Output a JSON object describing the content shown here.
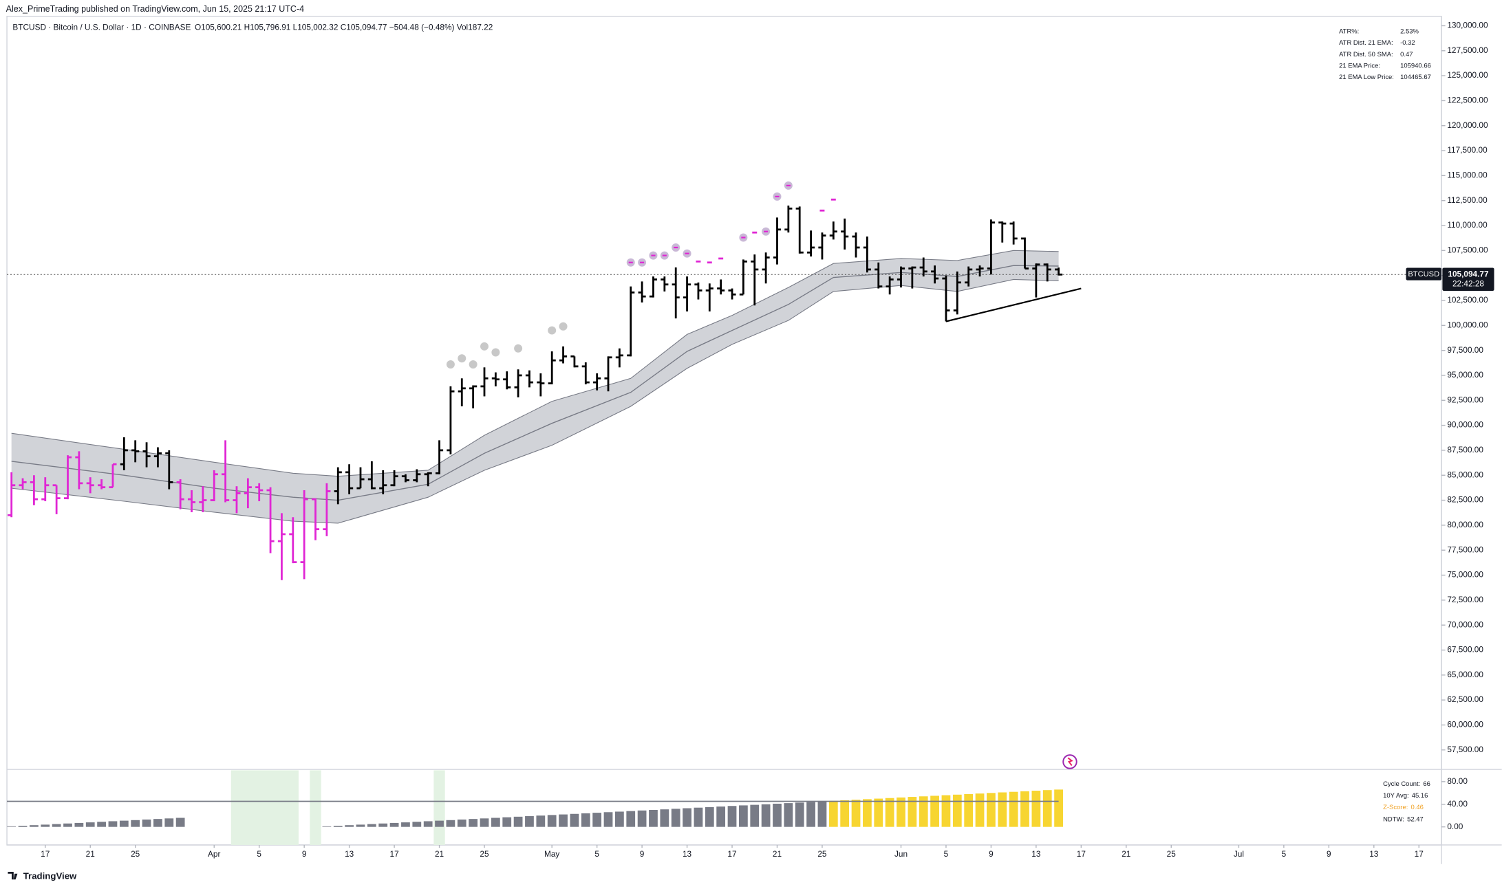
{
  "header": {
    "publisher": "Alex_PrimeTrading published on TradingView.com, Jun 15, 2025 21:17 UTC-4",
    "symbol": "BTCUSD · Bitcoin / U.S. Dollar · 1D · COINBASE",
    "ohlc_text": "O105,600.21 H105,796.91 L105,002.32 C105,094.77 −504.48 (−0.48%) Vol187.22"
  },
  "chart_data": {
    "type": "ohlc",
    "x": [
      "Mar 14",
      "Mar 15",
      "Mar 16",
      "Mar 17",
      "Mar 18",
      "Mar 19",
      "Mar 20",
      "Mar 21",
      "Mar 22",
      "Mar 23",
      "Mar 24",
      "Mar 25",
      "Mar 26",
      "Mar 27",
      "Mar 28",
      "Mar 29",
      "Mar 30",
      "Mar 31",
      "Apr 1",
      "Apr 2",
      "Apr 3",
      "Apr 4",
      "Apr 5",
      "Apr 6",
      "Apr 7",
      "Apr 8",
      "Apr 9",
      "Apr 10",
      "Apr 11",
      "Apr 12",
      "Apr 13",
      "Apr 14",
      "Apr 15",
      "Apr 16",
      "Apr 17",
      "Apr 18",
      "Apr 19",
      "Apr 20",
      "Apr 21",
      "Apr 22",
      "Apr 23",
      "Apr 24",
      "Apr 25",
      "Apr 26",
      "Apr 27",
      "Apr 28",
      "Apr 29",
      "Apr 30",
      "May 1",
      "May 2",
      "May 3",
      "May 4",
      "May 5",
      "May 6",
      "May 7",
      "May 8",
      "May 9",
      "May 10",
      "May 11",
      "May 12",
      "May 13",
      "May 14",
      "May 15",
      "May 16",
      "May 17",
      "May 18",
      "May 19",
      "May 20",
      "May 21",
      "May 22",
      "May 23",
      "May 24",
      "May 25",
      "May 26",
      "May 27",
      "May 28",
      "May 29",
      "May 30",
      "May 31",
      "Jun 1",
      "Jun 2",
      "Jun 3",
      "Jun 4",
      "Jun 5",
      "Jun 6",
      "Jun 7",
      "Jun 8",
      "Jun 9",
      "Jun 10",
      "Jun 11",
      "Jun 12",
      "Jun 13",
      "Jun 14",
      "Jun 15"
    ],
    "ohlc": [
      [
        81000,
        85300,
        80800,
        84000
      ],
      [
        84000,
        84700,
        83600,
        84300
      ],
      [
        84300,
        85000,
        82000,
        82600
      ],
      [
        82600,
        84800,
        82400,
        84000
      ],
      [
        84000,
        84000,
        81100,
        82700
      ],
      [
        82700,
        87000,
        82600,
        86800
      ],
      [
        86800,
        87400,
        83600,
        84200
      ],
      [
        84200,
        84800,
        83200,
        84000
      ],
      [
        84000,
        84600,
        83600,
        83800
      ],
      [
        83800,
        86100,
        83800,
        86100
      ],
      [
        86100,
        88800,
        85500,
        87500
      ],
      [
        87500,
        88500,
        86300,
        87400
      ],
      [
        87400,
        88300,
        85800,
        86900
      ],
      [
        86900,
        87800,
        85800,
        87200
      ],
      [
        87200,
        87500,
        83600,
        84300
      ],
      [
        84300,
        84600,
        81600,
        82600
      ],
      [
        82600,
        83500,
        81300,
        82300
      ],
      [
        82300,
        83900,
        81300,
        82500
      ],
      [
        82500,
        85500,
        82400,
        85100
      ],
      [
        85100,
        88500,
        82300,
        82500
      ],
      [
        82500,
        83900,
        81200,
        83200
      ],
      [
        83200,
        84700,
        81700,
        83800
      ],
      [
        83800,
        84200,
        82400,
        83500
      ],
      [
        83500,
        83800,
        77200,
        78400
      ],
      [
        78400,
        81200,
        74500,
        79100
      ],
      [
        79100,
        80800,
        76200,
        76300
      ],
      [
        76300,
        83500,
        74600,
        82600
      ],
      [
        82600,
        82700,
        78500,
        79600
      ],
      [
        79600,
        84200,
        78900,
        83400
      ],
      [
        83400,
        85800,
        82100,
        85300
      ],
      [
        85300,
        86100,
        83100,
        83700
      ],
      [
        83700,
        85800,
        83700,
        84600
      ],
      [
        84600,
        86400,
        83600,
        83700
      ],
      [
        83700,
        85500,
        83100,
        84000
      ],
      [
        84000,
        85500,
        83900,
        84900
      ],
      [
        84900,
        85100,
        84300,
        84500
      ],
      [
        84500,
        85600,
        84300,
        85100
      ],
      [
        85100,
        85300,
        83900,
        85200
      ],
      [
        85200,
        88500,
        85100,
        87500
      ],
      [
        87500,
        93900,
        87100,
        93400
      ],
      [
        93400,
        94700,
        91900,
        93700
      ],
      [
        93700,
        94000,
        91700,
        93900
      ],
      [
        93900,
        95800,
        92900,
        94700
      ],
      [
        94700,
        95300,
        93900,
        94600
      ],
      [
        94600,
        95400,
        93600,
        93800
      ],
      [
        93800,
        95600,
        92800,
        95000
      ],
      [
        95000,
        95500,
        93800,
        94300
      ],
      [
        94300,
        95200,
        92900,
        94200
      ],
      [
        94200,
        97400,
        94100,
        96500
      ],
      [
        96500,
        97900,
        96200,
        96900
      ],
      [
        96900,
        96900,
        95800,
        95900
      ],
      [
        95900,
        96300,
        94100,
        94300
      ],
      [
        94300,
        95200,
        93500,
        94700
      ],
      [
        94700,
        96900,
        93400,
        96800
      ],
      [
        96800,
        97700,
        95800,
        97000
      ],
      [
        97000,
        103900,
        96900,
        103300
      ],
      [
        103300,
        104400,
        102300,
        102900
      ],
      [
        102900,
        104900,
        102800,
        104600
      ],
      [
        104600,
        104900,
        103400,
        104100
      ],
      [
        104100,
        105800,
        100700,
        102800
      ],
      [
        102800,
        104900,
        101400,
        104100
      ],
      [
        104100,
        104300,
        102600,
        103500
      ],
      [
        103500,
        104200,
        101400,
        103700
      ],
      [
        103700,
        104600,
        103100,
        103500
      ],
      [
        103500,
        103700,
        102600,
        103100
      ],
      [
        103100,
        106600,
        103100,
        106400
      ],
      [
        106400,
        107100,
        102000,
        105600
      ],
      [
        105600,
        107300,
        104200,
        106800
      ],
      [
        106800,
        110800,
        106100,
        109600
      ],
      [
        109600,
        112000,
        109300,
        111700
      ],
      [
        111700,
        111900,
        107200,
        107300
      ],
      [
        107300,
        109500,
        106900,
        107800
      ],
      [
        107800,
        109300,
        106600,
        109000
      ],
      [
        109000,
        110400,
        108600,
        109400
      ],
      [
        109400,
        110700,
        107600,
        108900
      ],
      [
        108900,
        109300,
        106800,
        107800
      ],
      [
        107800,
        108900,
        105300,
        105600
      ],
      [
        105600,
        106300,
        103700,
        103900
      ],
      [
        103900,
        104900,
        103100,
        104600
      ],
      [
        104600,
        105900,
        103800,
        105700
      ],
      [
        105700,
        105900,
        103700,
        105800
      ],
      [
        105800,
        106800,
        104900,
        105400
      ],
      [
        105400,
        106000,
        104200,
        104700
      ],
      [
        104700,
        105000,
        100400,
        101500
      ],
      [
        101500,
        105400,
        101100,
        104300
      ],
      [
        104300,
        105900,
        103900,
        105600
      ],
      [
        105600,
        106000,
        104900,
        105700
      ],
      [
        105700,
        110600,
        105100,
        110300
      ],
      [
        110300,
        110400,
        108300,
        110200
      ],
      [
        110200,
        110400,
        108100,
        108700
      ],
      [
        108700,
        108800,
        105700,
        105700
      ],
      [
        105700,
        106200,
        102800,
        106100
      ],
      [
        106100,
        106200,
        104400,
        105600
      ],
      [
        105600.21,
        105796.91,
        105002.32,
        105094.77
      ]
    ],
    "bar_colors": [
      "#e026d4",
      "#e026d4",
      "#e026d4",
      "#e026d4",
      "#e026d4",
      "#e026d4",
      "#e026d4",
      "#e026d4",
      "#e026d4",
      "#e026d4",
      "#000000",
      "#000000",
      "#000000",
      "#000000",
      "#000000",
      "#e026d4",
      "#e026d4",
      "#e026d4",
      "#e026d4",
      "#e026d4",
      "#e026d4",
      "#e026d4",
      "#e026d4",
      "#e026d4",
      "#e026d4",
      "#e026d4",
      "#e026d4",
      "#e026d4",
      "#e026d4",
      "#000000",
      "#000000",
      "#000000",
      "#000000",
      "#000000",
      "#000000",
      "#000000",
      "#000000",
      "#000000",
      "#000000",
      "#000000",
      "#000000",
      "#000000",
      "#000000",
      "#000000",
      "#000000",
      "#000000",
      "#000000",
      "#000000",
      "#000000",
      "#000000",
      "#000000",
      "#000000",
      "#000000",
      "#000000",
      "#000000",
      "#000000",
      "#000000",
      "#000000",
      "#000000",
      "#000000",
      "#000000",
      "#000000",
      "#000000",
      "#000000",
      "#000000",
      "#000000",
      "#000000",
      "#000000",
      "#000000",
      "#000000",
      "#000000",
      "#000000",
      "#000000",
      "#000000",
      "#000000",
      "#000000",
      "#000000",
      "#000000",
      "#000000",
      "#000000",
      "#000000",
      "#000000",
      "#000000",
      "#000000",
      "#000000",
      "#000000",
      "#000000",
      "#000000",
      "#000000",
      "#000000",
      "#000000",
      "#000000",
      "#000000",
      "#000000"
    ],
    "xlim": [
      "Mar 13",
      "Jul 19"
    ],
    "ylim": [
      55650,
      130950
    ],
    "yticks": [
      {
        "value": 130000,
        "label": "130,000.00"
      },
      {
        "value": 127500,
        "label": "127,500.00"
      },
      {
        "value": 125000,
        "label": "125,000.00"
      },
      {
        "value": 122500,
        "label": "122,500.00"
      },
      {
        "value": 120000,
        "label": "120,000.00"
      },
      {
        "value": 117500,
        "label": "117,500.00"
      },
      {
        "value": 115000,
        "label": "115,000.00"
      },
      {
        "value": 112500,
        "label": "112,500.00"
      },
      {
        "value": 110000,
        "label": "110,000.00"
      },
      {
        "value": 107500,
        "label": "107,500.00"
      },
      {
        "value": 105000,
        "label": "105,000.00"
      },
      {
        "value": 102500,
        "label": "102,500.00"
      },
      {
        "value": 100000,
        "label": "100,000.00"
      },
      {
        "value": 97500,
        "label": "97,500.00"
      },
      {
        "value": 95000,
        "label": "95,000.00"
      },
      {
        "value": 92500,
        "label": "92,500.00"
      },
      {
        "value": 90000,
        "label": "90,000.00"
      },
      {
        "value": 87500,
        "label": "87,500.00"
      },
      {
        "value": 85000,
        "label": "85,000.00"
      },
      {
        "value": 82500,
        "label": "82,500.00"
      },
      {
        "value": 80000,
        "label": "80,000.00"
      },
      {
        "value": 77500,
        "label": "77,500.00"
      },
      {
        "value": 75000,
        "label": "75,000.00"
      },
      {
        "value": 72500,
        "label": "72,500.00"
      },
      {
        "value": 70000,
        "label": "70,000.00"
      },
      {
        "value": 67500,
        "label": "67,500.00"
      },
      {
        "value": 65000,
        "label": "65,000.00"
      },
      {
        "value": 62500,
        "label": "62,500.00"
      },
      {
        "value": 60000,
        "label": "60,000.00"
      },
      {
        "value": 57500,
        "label": "57,500.00"
      }
    ],
    "xticks": [
      {
        "value": "Mar 17",
        "label": "17"
      },
      {
        "value": "Mar 21",
        "label": "21"
      },
      {
        "value": "Mar 25",
        "label": "25"
      },
      {
        "value": "Apr 1",
        "label": "Apr"
      },
      {
        "value": "Apr 5",
        "label": "5"
      },
      {
        "value": "Apr 9",
        "label": "9"
      },
      {
        "value": "Apr 13",
        "label": "13"
      },
      {
        "value": "Apr 17",
        "label": "17"
      },
      {
        "value": "Apr 21",
        "label": "21"
      },
      {
        "value": "Apr 25",
        "label": "25"
      },
      {
        "value": "May 1",
        "label": "May"
      },
      {
        "value": "May 5",
        "label": "5"
      },
      {
        "value": "May 9",
        "label": "9"
      },
      {
        "value": "May 13",
        "label": "13"
      },
      {
        "value": "May 17",
        "label": "17"
      },
      {
        "value": "May 21",
        "label": "21"
      },
      {
        "value": "May 25",
        "label": "25"
      },
      {
        "value": "Jun 1",
        "label": "Jun"
      },
      {
        "value": "Jun 5",
        "label": "5"
      },
      {
        "value": "Jun 9",
        "label": "9"
      },
      {
        "value": "Jun 13",
        "label": "13"
      },
      {
        "value": "Jun 17",
        "label": "17"
      },
      {
        "value": "Jun 21",
        "label": "21"
      },
      {
        "value": "Jun 25",
        "label": "25"
      },
      {
        "value": "Jul 1",
        "label": "Jul"
      },
      {
        "value": "Jul 5",
        "label": "5"
      },
      {
        "value": "Jul 9",
        "label": "9"
      },
      {
        "value": "Jul 13",
        "label": "13"
      },
      {
        "value": "Jul 17",
        "label": "17"
      }
    ],
    "band": {
      "x": [
        "Mar 14",
        "Mar 24",
        "Apr 1",
        "Apr 8",
        "Apr 12",
        "Apr 20",
        "Apr 25",
        "May 1",
        "May 8",
        "May 13",
        "May 17",
        "May 22",
        "May 26",
        "Jun 1",
        "Jun 6",
        "Jun 11",
        "Jun 15"
      ],
      "upper": [
        89200,
        87600,
        86300,
        85200,
        84900,
        85500,
        89000,
        92400,
        94700,
        99100,
        101000,
        103800,
        106200,
        106700,
        106500,
        107500,
        107400
      ],
      "mid": [
        86400,
        85000,
        83700,
        82800,
        82500,
        84100,
        87200,
        90200,
        93300,
        97400,
        99500,
        102100,
        104800,
        105300,
        104900,
        106000,
        105940.66
      ],
      "lower": [
        83700,
        82400,
        81300,
        80400,
        80200,
        82800,
        85500,
        88000,
        91900,
        95700,
        98100,
        100500,
        103400,
        104000,
        103400,
        104600,
        104465.67
      ],
      "color": "#b2b5be",
      "line_color": "#787b86"
    },
    "signal_dots": {
      "x": [
        "Apr 22",
        "Apr 23",
        "Apr 24",
        "Apr 25",
        "Apr 26",
        "Apr 28",
        "May 1",
        "May 2"
      ],
      "values": [
        96100,
        96700,
        96100,
        97900,
        97300,
        97700,
        99500,
        99900
      ],
      "color": "#c8c8c8"
    },
    "signal_rings": {
      "x": [
        "May 8",
        "May 9",
        "May 10",
        "May 11",
        "May 12",
        "May 13",
        "May 18",
        "May 20",
        "May 21",
        "May 22"
      ],
      "values": [
        106300,
        106300,
        107000,
        107000,
        107800,
        107200,
        108800,
        109400,
        112900,
        114000
      ],
      "color": "#c9b8d6",
      "inner_color": "#e026d4"
    },
    "signal_dashes": {
      "x": [
        "May 14",
        "May 15",
        "May 16",
        "May 19",
        "May 25",
        "May 26"
      ],
      "values": [
        106400,
        106300,
        106700,
        109300,
        111500,
        112600
      ],
      "color": "#e026d4"
    },
    "trendline": {
      "x": [
        "Jun 5",
        "Jun 17"
      ],
      "values": [
        100400,
        103700
      ]
    },
    "price_tag": {
      "symbol": "BTCUSD",
      "price": "105,094.77",
      "countdown": "22:42:28"
    },
    "stats_table": [
      [
        "ATR%:",
        "2.53%"
      ],
      [
        "ATR Dist. 21 EMA:",
        -0.32
      ],
      [
        "ATR Dist. 50 SMA:",
        0.47
      ],
      [
        "21 EMA Price:",
        105940.66
      ],
      [
        "21 EMA Low Price:",
        104465.67
      ]
    ],
    "cycle": {
      "values": [
        1,
        2,
        3,
        4,
        5,
        6,
        7,
        8,
        9,
        10,
        11,
        12,
        13,
        14,
        15,
        16,
        0,
        0,
        0,
        0,
        0,
        0,
        0,
        0,
        0,
        0,
        0,
        0,
        1,
        2,
        3,
        4,
        5,
        6,
        7,
        8,
        9,
        10,
        11,
        12,
        13,
        14,
        15,
        16,
        17,
        18,
        19,
        20,
        21,
        22,
        23,
        24,
        25,
        26,
        27,
        28,
        29,
        30,
        31,
        32,
        33,
        34,
        35,
        36,
        37,
        38,
        39,
        40,
        41,
        42,
        43,
        44,
        45,
        46,
        47,
        48,
        49,
        50,
        51,
        52,
        53,
        54,
        55,
        56,
        57,
        58,
        59,
        60,
        61,
        62,
        63,
        64,
        65,
        66
      ],
      "ylim": [
        -32,
        100
      ],
      "yticks": [
        {
          "value": 80,
          "label": "80.00"
        },
        {
          "value": 40,
          "label": "40.00"
        },
        {
          "value": 0,
          "label": "0.00"
        }
      ],
      "color": "#787b86",
      "high_color": "#f7d531",
      "shade_color": "#e3f2e3",
      "shaded": [
        [
          "Apr 3",
          "Apr 8"
        ],
        [
          "Apr 10",
          "Apr 10"
        ],
        [
          "Apr 21",
          "Apr 21"
        ]
      ],
      "table": [
        [
          "Cycle Count:",
          66
        ],
        [
          "10Y Avg:",
          45.16
        ],
        [
          "Z-Score:",
          0.46
        ],
        [
          "NDTW:",
          52.47
        ]
      ]
    }
  },
  "footer": {
    "brand": "TradingView"
  }
}
